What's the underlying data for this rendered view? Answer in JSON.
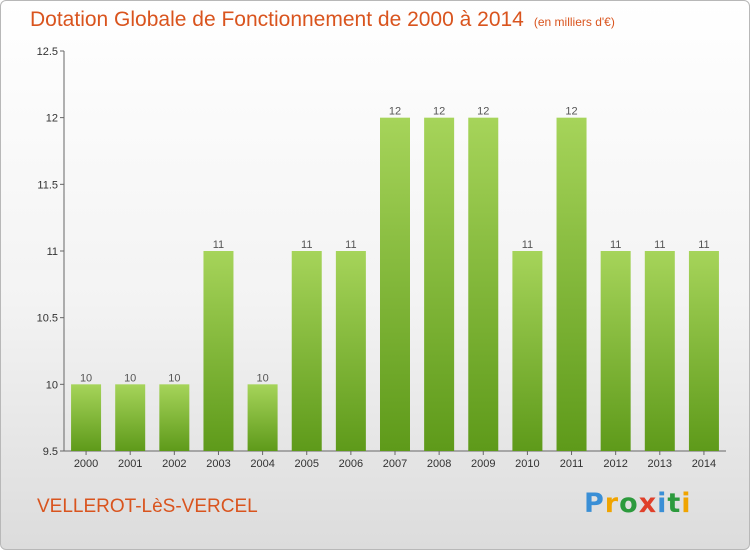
{
  "header": {
    "title": "Dotation Globale de Fonctionnement de 2000 à 2014",
    "unit": "(en milliers d'€)"
  },
  "footer": {
    "town": "VELLEROT-LèS-VERCEL",
    "logo_letters": [
      "P",
      "r",
      "o",
      "x",
      "i",
      "t",
      "i"
    ],
    "logo_colors": [
      "#3a8fd6",
      "#f0a400",
      "#2c9a3d",
      "#e0402a",
      "#3a8fd6",
      "#2c9a3d",
      "#f0a400"
    ]
  },
  "chart_data": {
    "type": "bar",
    "title": "Dotation Globale de Fonctionnement de 2000 à 2014",
    "subtitle": "(en milliers d'€)",
    "xlabel": "",
    "ylabel": "",
    "categories": [
      "2000",
      "2001",
      "2002",
      "2003",
      "2004",
      "2005",
      "2006",
      "2007",
      "2008",
      "2009",
      "2010",
      "2011",
      "2012",
      "2013",
      "2014"
    ],
    "values": [
      10,
      10,
      10,
      11,
      10,
      11,
      11,
      12,
      12,
      12,
      11,
      12,
      11,
      11,
      11
    ],
    "data_labels": [
      "10",
      "10",
      "10",
      "11",
      "10",
      "11",
      "11",
      "12",
      "12",
      "12",
      "11",
      "12",
      "11",
      "11",
      "11"
    ],
    "ylim": [
      9.5,
      12.5
    ],
    "yticks": [
      9.5,
      10,
      10.5,
      11,
      11.5,
      12,
      12.5
    ],
    "ytick_labels": [
      "9.5",
      "10",
      "10.5",
      "11",
      "11.5",
      "12",
      "12.5"
    ],
    "grid": false,
    "legend": "none",
    "bar_color_top": "#a6d45a",
    "bar_color_bottom": "#5e9a1a",
    "label_color": "#555555"
  }
}
